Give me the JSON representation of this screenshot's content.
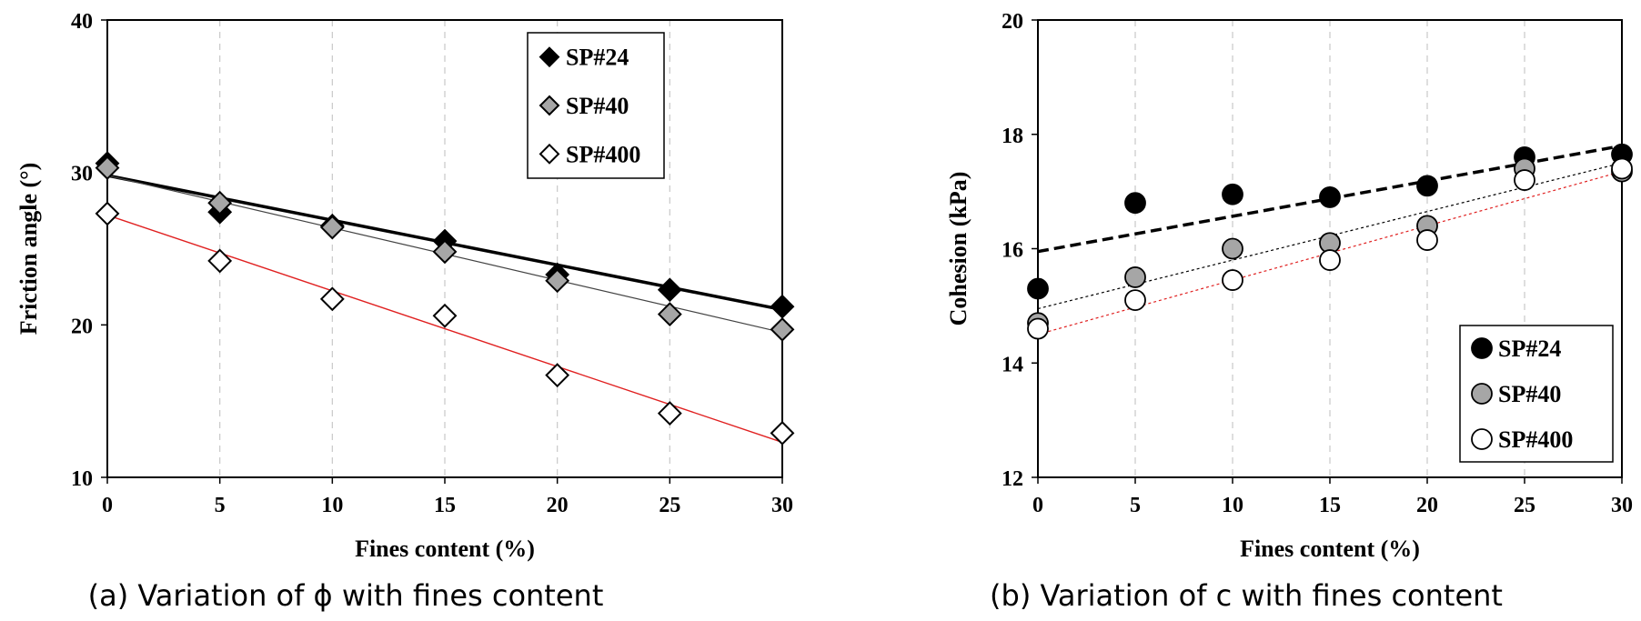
{
  "chart_data": [
    {
      "type": "scatter",
      "id": "a",
      "caption": "(a) Variation of ϕ with fines content",
      "xlabel": "Fines content (%)",
      "ylabel": "Friction angle (°)",
      "xlim": [
        0,
        30
      ],
      "ylim": [
        10,
        40
      ],
      "xticks": [
        0,
        5,
        10,
        15,
        20,
        25,
        30
      ],
      "yticks": [
        10,
        20,
        30,
        40
      ],
      "vertical_gridlines": true,
      "legend_position": "top-right",
      "series": [
        {
          "name": "SP#24",
          "marker": "diamond",
          "fill": "#000000",
          "x": [
            0,
            5,
            10,
            15,
            20,
            25,
            30
          ],
          "y": [
            30.6,
            27.4,
            26.5,
            25.5,
            23.3,
            22.3,
            21.2
          ],
          "trend": [
            29.8,
            21.0
          ],
          "trend_color": "#000000",
          "trend_width": 3.5,
          "trend_dash": "none"
        },
        {
          "name": "SP#40",
          "marker": "diamond",
          "fill": "#a6a6a6",
          "x": [
            0,
            5,
            10,
            15,
            20,
            25,
            30
          ],
          "y": [
            30.3,
            28.0,
            26.4,
            24.8,
            22.9,
            20.7,
            19.7
          ],
          "trend": [
            29.8,
            19.5
          ],
          "trend_color": "#444444",
          "trend_width": 1.2,
          "trend_dash": "none"
        },
        {
          "name": "SP#400",
          "marker": "diamond",
          "fill": "#ffffff",
          "x": [
            0,
            5,
            10,
            15,
            20,
            25,
            30
          ],
          "y": [
            27.3,
            24.2,
            21.7,
            20.6,
            16.7,
            14.2,
            12.9
          ],
          "trend": [
            27.2,
            12.3
          ],
          "trend_color": "#e02020",
          "trend_width": 1.4,
          "trend_dash": "none"
        }
      ]
    },
    {
      "type": "scatter",
      "id": "b",
      "caption": "(b) Variation of c with fines content",
      "xlabel": "Fines content (%)",
      "ylabel": "Cohesion (kPa)",
      "xlim": [
        0,
        30
      ],
      "ylim": [
        12,
        20
      ],
      "xticks": [
        0,
        5,
        10,
        15,
        20,
        25,
        30
      ],
      "yticks": [
        12,
        14,
        16,
        18,
        20
      ],
      "vertical_gridlines": true,
      "legend_position": "bottom-right",
      "series": [
        {
          "name": "SP#24",
          "marker": "circle",
          "fill": "#000000",
          "x": [
            0,
            5,
            10,
            15,
            20,
            25,
            30
          ],
          "y": [
            15.3,
            16.8,
            16.95,
            16.9,
            17.1,
            17.6,
            17.65
          ],
          "trend": [
            15.95,
            17.8
          ],
          "trend_color": "#000000",
          "trend_width": 3.5,
          "trend_dash": "12,6"
        },
        {
          "name": "SP#40",
          "marker": "circle",
          "fill": "#a6a6a6",
          "x": [
            0,
            5,
            10,
            15,
            20,
            25,
            30
          ],
          "y": [
            14.7,
            15.5,
            16.0,
            16.1,
            16.4,
            17.4,
            17.35
          ],
          "trend": [
            14.95,
            17.5
          ],
          "trend_color": "#000000",
          "trend_width": 1.2,
          "trend_dash": "3,3"
        },
        {
          "name": "SP#400",
          "marker": "circle",
          "fill": "#ffffff",
          "x": [
            0,
            5,
            10,
            15,
            20,
            25,
            30
          ],
          "y": [
            14.6,
            15.1,
            15.45,
            15.8,
            16.15,
            17.2,
            17.4
          ],
          "trend": [
            14.5,
            17.35
          ],
          "trend_color": "#e02020",
          "trend_width": 1.2,
          "trend_dash": "3,3"
        }
      ]
    }
  ]
}
